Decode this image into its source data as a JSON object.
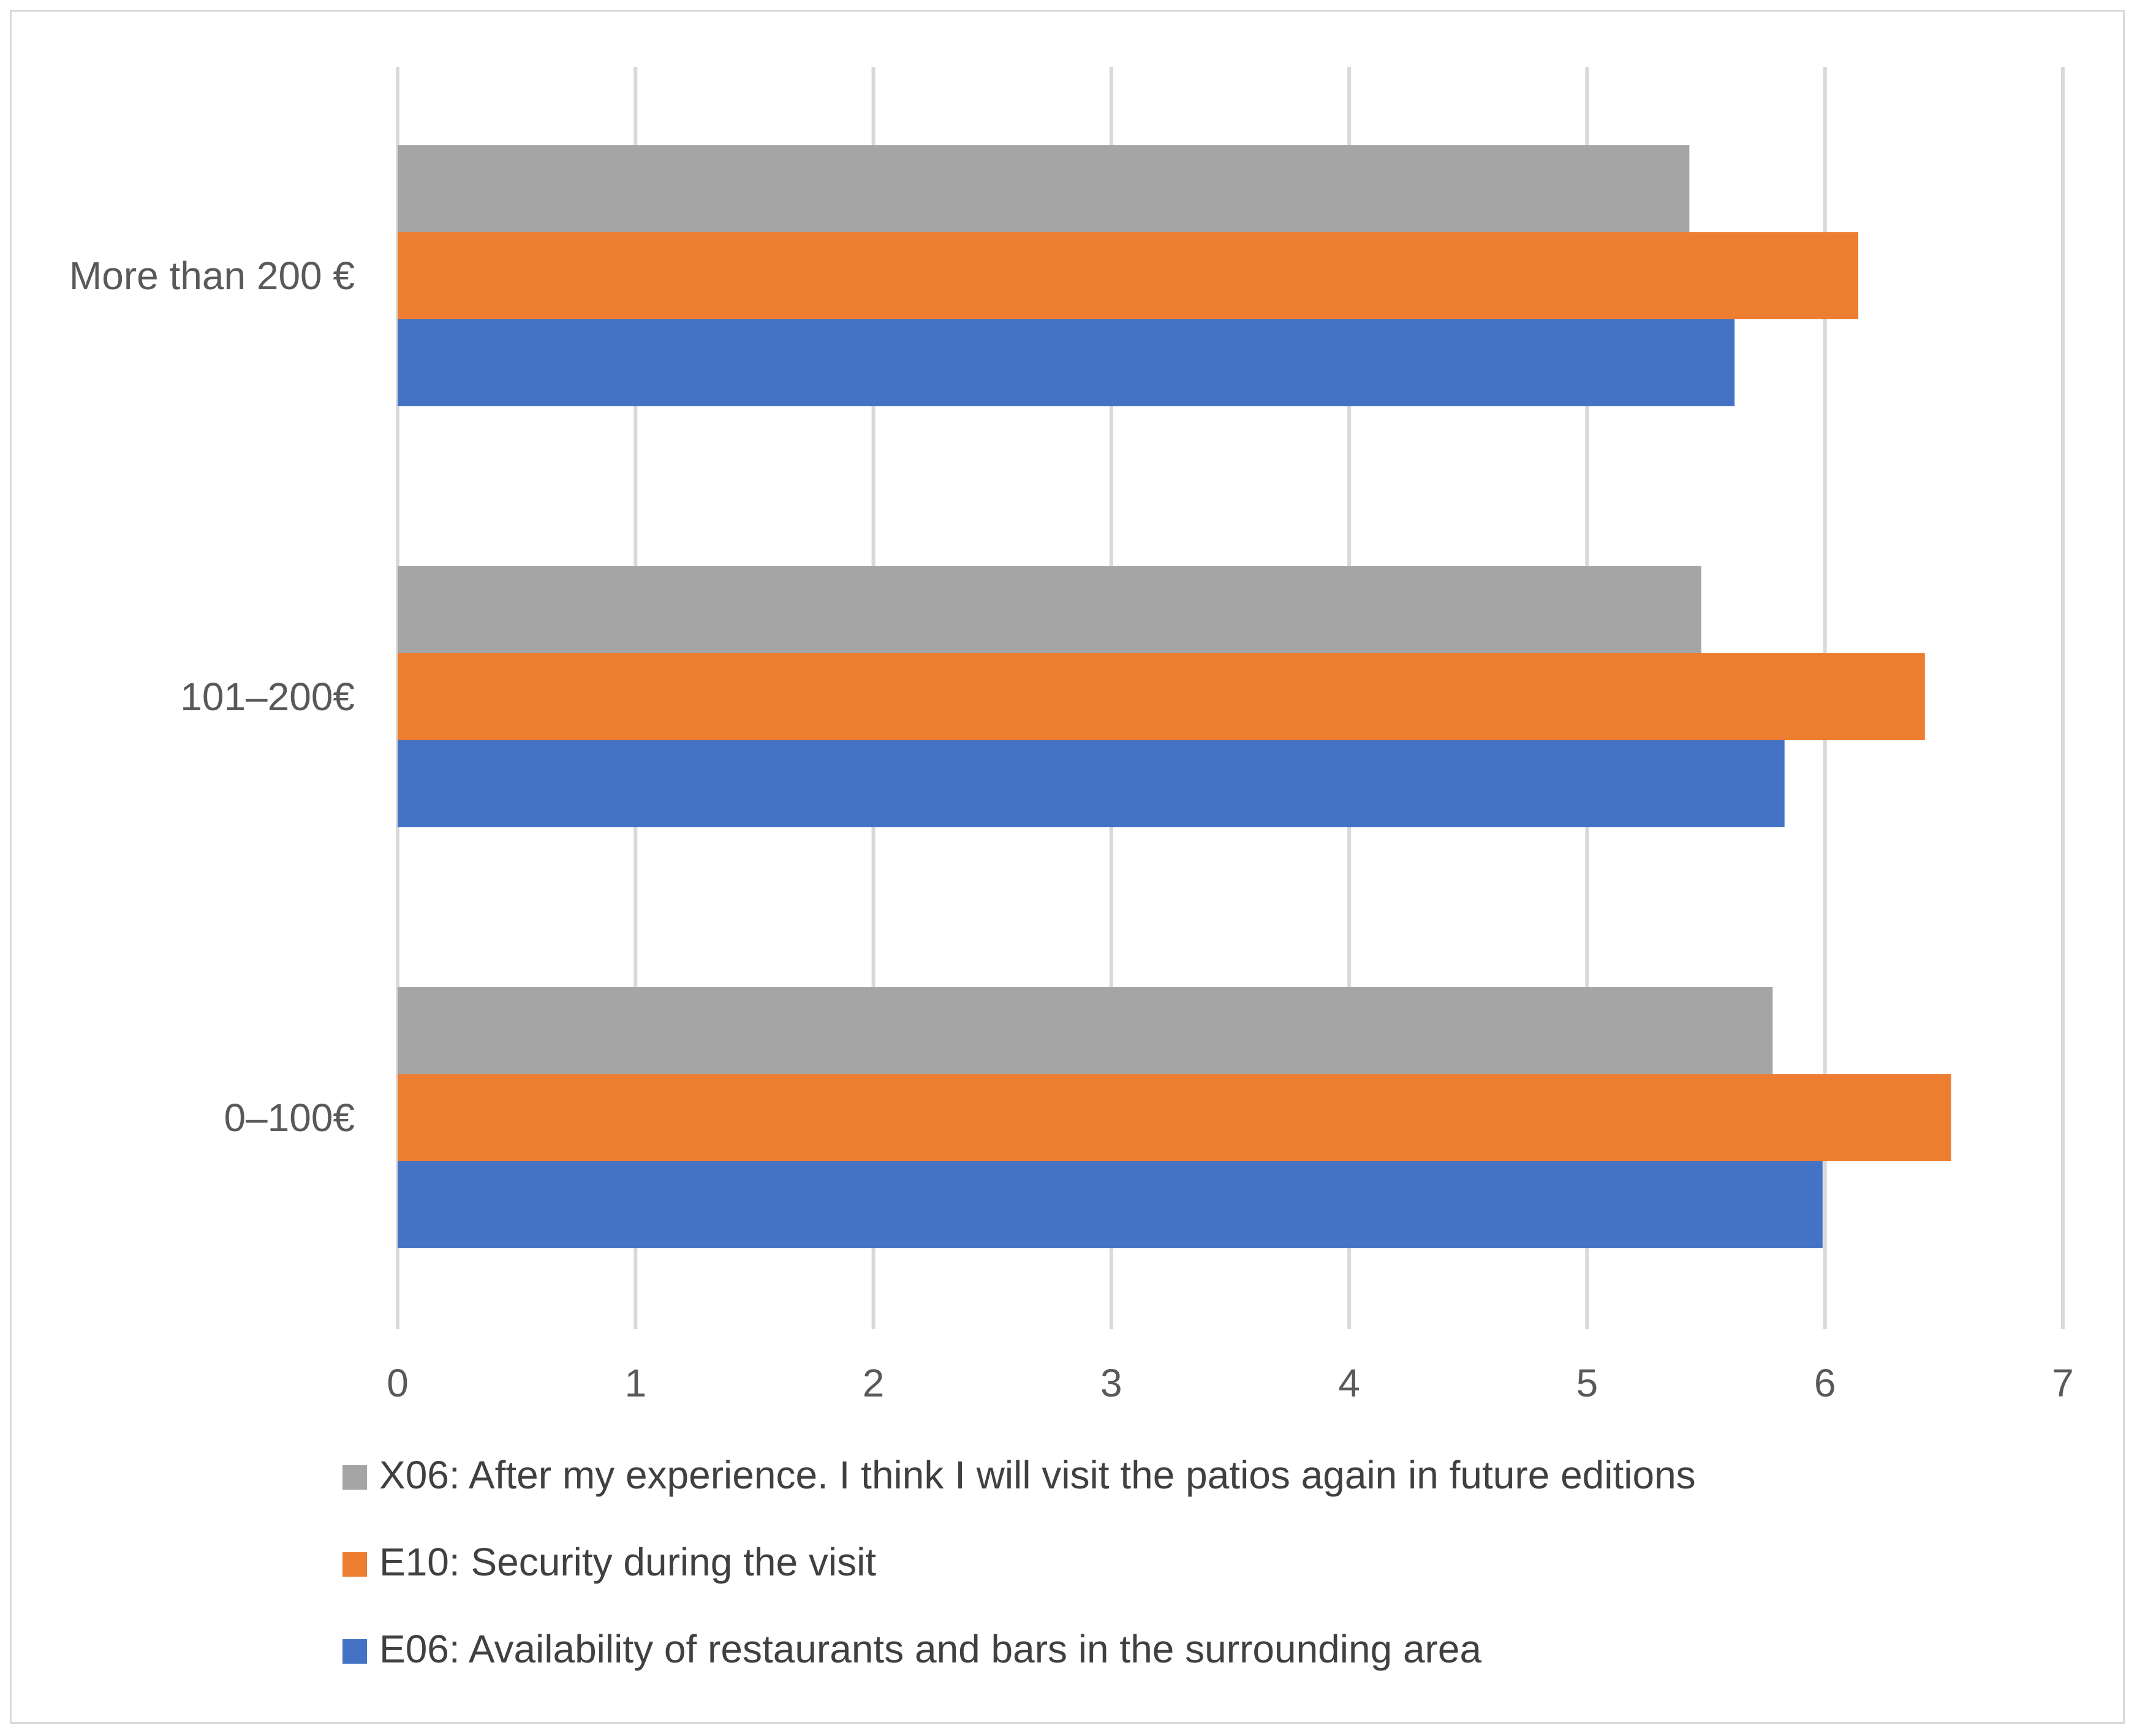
{
  "chart_data": {
    "type": "bar",
    "orientation": "horizontal",
    "title": "",
    "xlabel": "",
    "ylabel": "",
    "xlim": [
      0,
      7
    ],
    "ticks": [
      0,
      1,
      2,
      3,
      4,
      5,
      6,
      7
    ],
    "tick_labels": [
      "0",
      "1",
      "2",
      "3",
      "4",
      "5",
      "6",
      "7"
    ],
    "grid": true,
    "legend_position": "bottom",
    "categories": [
      "More than 200 €",
      "101–200€",
      "0–100€"
    ],
    "series": [
      {
        "name": "X06: After my experience. I think I will visit the patios again in future editions",
        "color": "#a5a5a5",
        "values": [
          5.43,
          5.48,
          5.78
        ]
      },
      {
        "name": "E10: Security during the visit",
        "color": "#ed7d31",
        "values": [
          6.14,
          6.42,
          6.53
        ]
      },
      {
        "name": "E06: Availability of restaurants and bars in the surrounding area",
        "color": "#4472c4",
        "values": [
          5.62,
          5.83,
          5.99
        ]
      }
    ]
  }
}
